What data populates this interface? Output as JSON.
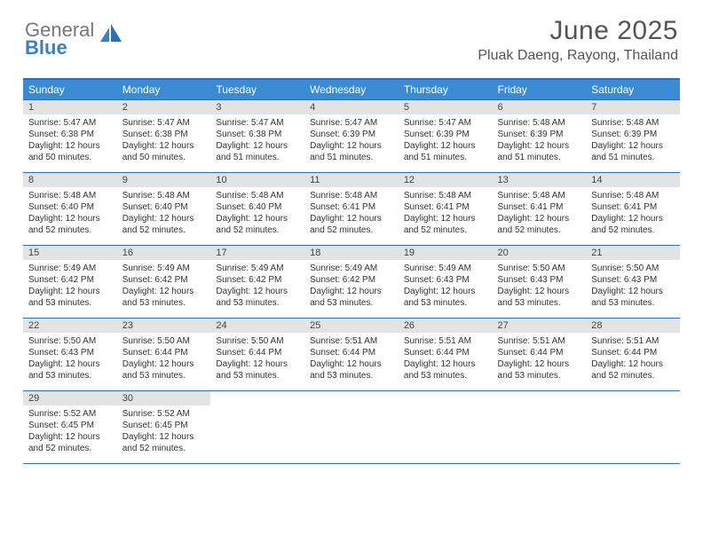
{
  "logo": {
    "line1": "General",
    "line2": "Blue"
  },
  "title": "June 2025",
  "location": "Pluak Daeng, Rayong, Thailand",
  "colors": {
    "header_bg": "#3b8bd4",
    "rule": "#2d6fb5",
    "daynum_bg": "#e3e3e3",
    "logo_blue": "#3b7fc4"
  },
  "dayHeaders": [
    "Sunday",
    "Monday",
    "Tuesday",
    "Wednesday",
    "Thursday",
    "Friday",
    "Saturday"
  ],
  "weeks": [
    [
      {
        "n": "1",
        "sr": "5:47 AM",
        "ss": "6:38 PM",
        "dl": "12 hours and 50 minutes."
      },
      {
        "n": "2",
        "sr": "5:47 AM",
        "ss": "6:38 PM",
        "dl": "12 hours and 50 minutes."
      },
      {
        "n": "3",
        "sr": "5:47 AM",
        "ss": "6:38 PM",
        "dl": "12 hours and 51 minutes."
      },
      {
        "n": "4",
        "sr": "5:47 AM",
        "ss": "6:39 PM",
        "dl": "12 hours and 51 minutes."
      },
      {
        "n": "5",
        "sr": "5:47 AM",
        "ss": "6:39 PM",
        "dl": "12 hours and 51 minutes."
      },
      {
        "n": "6",
        "sr": "5:48 AM",
        "ss": "6:39 PM",
        "dl": "12 hours and 51 minutes."
      },
      {
        "n": "7",
        "sr": "5:48 AM",
        "ss": "6:39 PM",
        "dl": "12 hours and 51 minutes."
      }
    ],
    [
      {
        "n": "8",
        "sr": "5:48 AM",
        "ss": "6:40 PM",
        "dl": "12 hours and 52 minutes."
      },
      {
        "n": "9",
        "sr": "5:48 AM",
        "ss": "6:40 PM",
        "dl": "12 hours and 52 minutes."
      },
      {
        "n": "10",
        "sr": "5:48 AM",
        "ss": "6:40 PM",
        "dl": "12 hours and 52 minutes."
      },
      {
        "n": "11",
        "sr": "5:48 AM",
        "ss": "6:41 PM",
        "dl": "12 hours and 52 minutes."
      },
      {
        "n": "12",
        "sr": "5:48 AM",
        "ss": "6:41 PM",
        "dl": "12 hours and 52 minutes."
      },
      {
        "n": "13",
        "sr": "5:48 AM",
        "ss": "6:41 PM",
        "dl": "12 hours and 52 minutes."
      },
      {
        "n": "14",
        "sr": "5:48 AM",
        "ss": "6:41 PM",
        "dl": "12 hours and 52 minutes."
      }
    ],
    [
      {
        "n": "15",
        "sr": "5:49 AM",
        "ss": "6:42 PM",
        "dl": "12 hours and 53 minutes."
      },
      {
        "n": "16",
        "sr": "5:49 AM",
        "ss": "6:42 PM",
        "dl": "12 hours and 53 minutes."
      },
      {
        "n": "17",
        "sr": "5:49 AM",
        "ss": "6:42 PM",
        "dl": "12 hours and 53 minutes."
      },
      {
        "n": "18",
        "sr": "5:49 AM",
        "ss": "6:42 PM",
        "dl": "12 hours and 53 minutes."
      },
      {
        "n": "19",
        "sr": "5:49 AM",
        "ss": "6:43 PM",
        "dl": "12 hours and 53 minutes."
      },
      {
        "n": "20",
        "sr": "5:50 AM",
        "ss": "6:43 PM",
        "dl": "12 hours and 53 minutes."
      },
      {
        "n": "21",
        "sr": "5:50 AM",
        "ss": "6:43 PM",
        "dl": "12 hours and 53 minutes."
      }
    ],
    [
      {
        "n": "22",
        "sr": "5:50 AM",
        "ss": "6:43 PM",
        "dl": "12 hours and 53 minutes."
      },
      {
        "n": "23",
        "sr": "5:50 AM",
        "ss": "6:44 PM",
        "dl": "12 hours and 53 minutes."
      },
      {
        "n": "24",
        "sr": "5:50 AM",
        "ss": "6:44 PM",
        "dl": "12 hours and 53 minutes."
      },
      {
        "n": "25",
        "sr": "5:51 AM",
        "ss": "6:44 PM",
        "dl": "12 hours and 53 minutes."
      },
      {
        "n": "26",
        "sr": "5:51 AM",
        "ss": "6:44 PM",
        "dl": "12 hours and 53 minutes."
      },
      {
        "n": "27",
        "sr": "5:51 AM",
        "ss": "6:44 PM",
        "dl": "12 hours and 53 minutes."
      },
      {
        "n": "28",
        "sr": "5:51 AM",
        "ss": "6:44 PM",
        "dl": "12 hours and 52 minutes."
      }
    ],
    [
      {
        "n": "29",
        "sr": "5:52 AM",
        "ss": "6:45 PM",
        "dl": "12 hours and 52 minutes."
      },
      {
        "n": "30",
        "sr": "5:52 AM",
        "ss": "6:45 PM",
        "dl": "12 hours and 52 minutes."
      },
      null,
      null,
      null,
      null,
      null
    ]
  ],
  "labels": {
    "sunrise": "Sunrise:",
    "sunset": "Sunset:",
    "daylight": "Daylight:"
  }
}
